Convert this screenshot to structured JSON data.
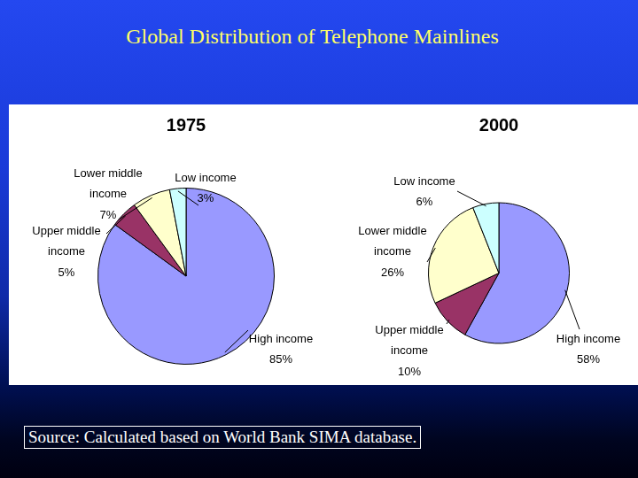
{
  "title": "Global Distribution of Telephone Mainlines",
  "source": "Source: Calculated based on World Bank SIMA database.",
  "chart_data": [
    {
      "type": "pie",
      "title": "1975",
      "categories": [
        "High income",
        "Upper middle income",
        "Lower middle income",
        "Low income"
      ],
      "values": [
        85,
        5,
        7,
        3
      ],
      "value_labels": [
        "85%",
        "5%",
        "7%",
        "3%"
      ],
      "colors": [
        "#9999ff",
        "#993366",
        "#ffffcc",
        "#ccffff"
      ],
      "data_labels": true
    },
    {
      "type": "pie",
      "title": "2000",
      "categories": [
        "High income",
        "Upper middle income",
        "Lower middle income",
        "Low income"
      ],
      "values": [
        58,
        10,
        26,
        6
      ],
      "value_labels": [
        "58%",
        "10%",
        "26%",
        "6%"
      ],
      "colors": [
        "#9999ff",
        "#993366",
        "#ffffcc",
        "#ccffff"
      ],
      "data_labels": true
    }
  ]
}
